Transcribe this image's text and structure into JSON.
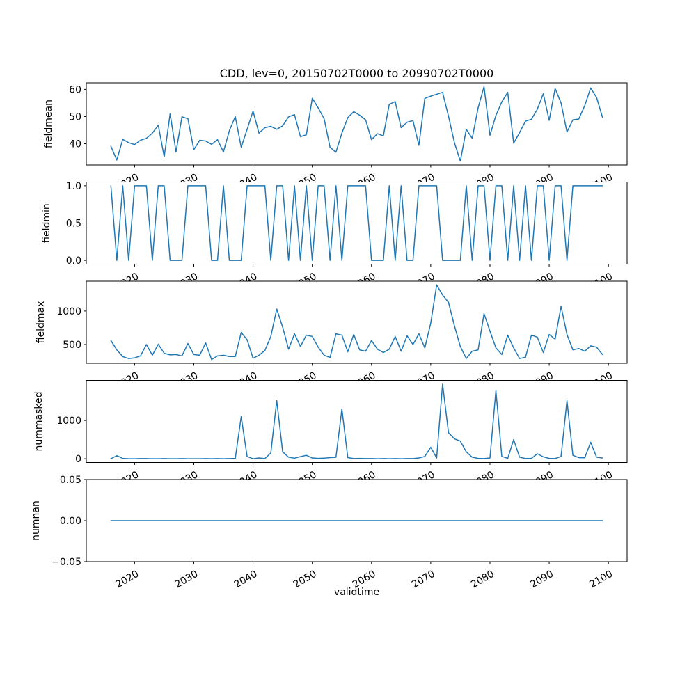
{
  "figure": {
    "title": "CDD, lev=0, 20150702T0000 to 20990702T0000",
    "xlabel": "validtime",
    "line_color": "#1f77b4",
    "xlim": [
      2011.85,
      2103.15
    ],
    "xticks": {
      "values": [
        2020,
        2030,
        2040,
        2050,
        2060,
        2070,
        2080,
        2090,
        2100
      ],
      "labels": [
        "2020",
        "2030",
        "2040",
        "2050",
        "2060",
        "2070",
        "2080",
        "2090",
        "2100"
      ]
    },
    "years": [
      2016,
      2017,
      2018,
      2019,
      2020,
      2021,
      2022,
      2023,
      2024,
      2025,
      2026,
      2027,
      2028,
      2029,
      2030,
      2031,
      2032,
      2033,
      2034,
      2035,
      2036,
      2037,
      2038,
      2039,
      2040,
      2041,
      2042,
      2043,
      2044,
      2045,
      2046,
      2047,
      2048,
      2049,
      2050,
      2051,
      2052,
      2053,
      2054,
      2055,
      2056,
      2057,
      2058,
      2059,
      2060,
      2061,
      2062,
      2063,
      2064,
      2065,
      2066,
      2067,
      2068,
      2069,
      2070,
      2071,
      2072,
      2073,
      2074,
      2075,
      2076,
      2077,
      2078,
      2079,
      2080,
      2081,
      2082,
      2083,
      2084,
      2085,
      2086,
      2087,
      2088,
      2089,
      2090,
      2091,
      2092,
      2093,
      2094,
      2095,
      2096,
      2097,
      2098,
      2099
    ]
  },
  "chart_data": [
    {
      "type": "line",
      "name": "fieldmean",
      "ylabel": "fieldmean",
      "ylim": [
        32.2,
        62.4
      ],
      "yticks": {
        "values": [
          40,
          50,
          60
        ],
        "labels": [
          "40",
          "50",
          "60"
        ]
      },
      "values": [
        39.1,
        34.0,
        41.6,
        40.4,
        39.7,
        41.3,
        42.0,
        43.9,
        46.8,
        35.2,
        51.0,
        37.0,
        49.9,
        49.2,
        37.8,
        41.3,
        41.0,
        39.8,
        41.5,
        37.0,
        44.8,
        50.0,
        38.7,
        45.3,
        52.0,
        43.9,
        45.9,
        46.4,
        45.3,
        46.6,
        49.9,
        50.7,
        42.6,
        43.3,
        56.7,
        53.2,
        49.2,
        38.7,
        36.9,
        43.9,
        49.6,
        51.8,
        50.5,
        48.8,
        41.5,
        43.7,
        42.9,
        54.5,
        55.5,
        45.9,
        47.9,
        48.5,
        39.4,
        56.7,
        57.5,
        58.2,
        58.9,
        50.1,
        40.4,
        33.6,
        45.3,
        42.0,
        53.2,
        61.0,
        43.1,
        50.4,
        55.4,
        58.9,
        40.2,
        44.1,
        48.3,
        49.0,
        52.7,
        58.4,
        48.6,
        60.3,
        55.0,
        44.3,
        48.8,
        49.1,
        54.0,
        60.5,
        57.0,
        49.7
      ]
    },
    {
      "type": "line",
      "name": "fieldmin",
      "ylabel": "fieldmin",
      "ylim": [
        -0.05,
        1.05
      ],
      "yticks": {
        "values": [
          0.0,
          0.5,
          1.0
        ],
        "labels": [
          "0.0",
          "0.5",
          "1.0"
        ]
      },
      "values": [
        1,
        0,
        1,
        0,
        1,
        1,
        1,
        0,
        1,
        1,
        0,
        0,
        0,
        1,
        1,
        1,
        1,
        0,
        0,
        1,
        0,
        0,
        0,
        1,
        1,
        1,
        1,
        0,
        1,
        1,
        0,
        1,
        0,
        1,
        0,
        1,
        1,
        0,
        1,
        0,
        1,
        1,
        1,
        1,
        0,
        0,
        0,
        1,
        0,
        1,
        0,
        0,
        1,
        1,
        1,
        1,
        0,
        0,
        0,
        0,
        1,
        0,
        1,
        1,
        0,
        1,
        1,
        0,
        1,
        0,
        1,
        0,
        1,
        1,
        0,
        1,
        1,
        0,
        1,
        1,
        1,
        1,
        1,
        1
      ]
    },
    {
      "type": "line",
      "name": "fieldmax",
      "ylabel": "fieldmax",
      "ylim": [
        219,
        1446
      ],
      "yticks": {
        "values": [
          500,
          1000
        ],
        "labels": [
          "500",
          "1000"
        ]
      },
      "values": [
        560,
        420,
        320,
        290,
        300,
        330,
        500,
        340,
        505,
        370,
        345,
        350,
        330,
        515,
        350,
        340,
        525,
        275,
        330,
        340,
        320,
        320,
        680,
        570,
        295,
        340,
        410,
        620,
        1030,
        760,
        430,
        660,
        470,
        640,
        620,
        460,
        340,
        305,
        660,
        640,
        390,
        650,
        420,
        400,
        560,
        430,
        380,
        430,
        620,
        400,
        630,
        500,
        660,
        450,
        820,
        1390,
        1240,
        1130,
        780,
        470,
        290,
        400,
        420,
        960,
        700,
        450,
        350,
        640,
        450,
        290,
        310,
        640,
        610,
        380,
        650,
        580,
        1070,
        650,
        420,
        440,
        400,
        480,
        460,
        350
      ]
    },
    {
      "type": "line",
      "name": "nummasked",
      "ylabel": "nummasked",
      "ylim": [
        -97.5,
        2047.5
      ],
      "yticks": {
        "values": [
          0,
          1000
        ],
        "labels": [
          "0",
          "1000"
        ]
      },
      "values": [
        0,
        80,
        10,
        0,
        0,
        5,
        5,
        0,
        0,
        5,
        0,
        0,
        5,
        0,
        0,
        0,
        5,
        0,
        5,
        0,
        5,
        10,
        1100,
        60,
        0,
        20,
        5,
        150,
        1520,
        180,
        40,
        15,
        55,
        90,
        20,
        10,
        15,
        30,
        40,
        1300,
        30,
        5,
        10,
        5,
        5,
        0,
        5,
        0,
        5,
        0,
        5,
        5,
        20,
        60,
        300,
        20,
        1950,
        680,
        520,
        460,
        180,
        40,
        10,
        5,
        20,
        1780,
        60,
        10,
        500,
        40,
        5,
        10,
        130,
        50,
        10,
        5,
        60,
        1520,
        90,
        30,
        25,
        430,
        40,
        20
      ]
    },
    {
      "type": "line",
      "name": "numnan",
      "ylabel": "numnan",
      "ylim": [
        -0.05,
        0.05
      ],
      "yticks": {
        "values": [
          -0.05,
          0.0,
          0.05
        ],
        "labels": [
          "−0.05",
          "0.00",
          "0.05"
        ]
      },
      "values": [
        0,
        0,
        0,
        0,
        0,
        0,
        0,
        0,
        0,
        0,
        0,
        0,
        0,
        0,
        0,
        0,
        0,
        0,
        0,
        0,
        0,
        0,
        0,
        0,
        0,
        0,
        0,
        0,
        0,
        0,
        0,
        0,
        0,
        0,
        0,
        0,
        0,
        0,
        0,
        0,
        0,
        0,
        0,
        0,
        0,
        0,
        0,
        0,
        0,
        0,
        0,
        0,
        0,
        0,
        0,
        0,
        0,
        0,
        0,
        0,
        0,
        0,
        0,
        0,
        0,
        0,
        0,
        0,
        0,
        0,
        0,
        0,
        0,
        0,
        0,
        0,
        0,
        0,
        0,
        0,
        0,
        0,
        0,
        0
      ]
    }
  ]
}
